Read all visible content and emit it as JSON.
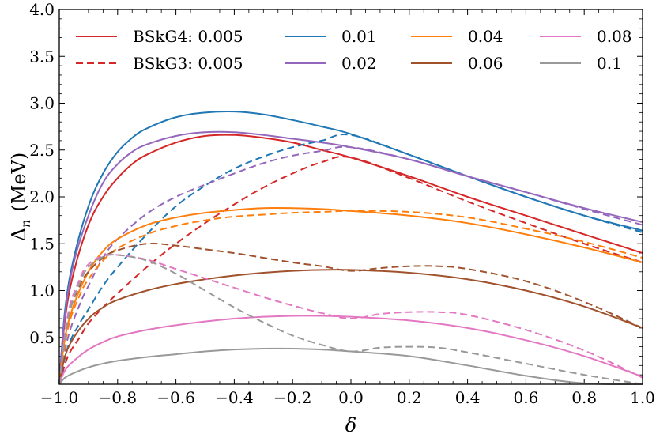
{
  "chart_data": {
    "type": "line",
    "title": "",
    "xlabel": "δ",
    "ylabel": "Δ",
    "ylabel_sub": "n",
    "ylabel_unit": "(MeV)",
    "xlim": [
      -1.0,
      1.0
    ],
    "ylim": [
      0.0,
      4.0
    ],
    "x_ticks": [
      -1.0,
      -0.8,
      -0.6,
      -0.4,
      -0.2,
      0.0,
      0.2,
      0.4,
      0.6,
      0.8,
      1.0
    ],
    "x_tick_labels": [
      "−1.0",
      "−0.8",
      "−0.6",
      "−0.4",
      "−0.2",
      "0.0",
      "0.2",
      "0.4",
      "0.6",
      "0.8",
      "1.0"
    ],
    "y_ticks": [
      0.5,
      1.0,
      1.5,
      2.0,
      2.5,
      3.0,
      3.5,
      4.0
    ],
    "y_tick_labels": [
      "0.5",
      "1.0",
      "1.5",
      "2.0",
      "2.5",
      "3.0",
      "3.5",
      "4.0"
    ],
    "legend": {
      "placement": "top",
      "entries": [
        {
          "label": "BSkG4: 0.005",
          "color": "#d62728",
          "dash": "solid"
        },
        {
          "label": "BSkG3: 0.005",
          "color": "#d62728",
          "dash": "dashed"
        },
        {
          "label": "0.01",
          "color": "#1f77b4",
          "dash": "solid"
        },
        {
          "label": "0.02",
          "color": "#9467bd",
          "dash": "solid"
        },
        {
          "label": "0.04",
          "color": "#ff7f0e",
          "dash": "solid"
        },
        {
          "label": "0.06",
          "color": "#a0522d",
          "dash": "solid"
        },
        {
          "label": "0.08",
          "color": "#e377c2",
          "dash": "solid"
        },
        {
          "label": "0.1",
          "color": "#999999",
          "dash": "solid"
        }
      ]
    },
    "series": [
      {
        "name": "BSkG4 0.005",
        "color": "#d62728",
        "dash": "solid",
        "x": [
          -1.0,
          -0.98,
          -0.95,
          -0.9,
          -0.85,
          -0.8,
          -0.75,
          -0.7,
          -0.6,
          -0.5,
          -0.4,
          -0.3,
          -0.2,
          -0.1,
          0.0,
          0.2,
          0.4,
          0.6,
          0.8,
          1.0
        ],
        "y": [
          0.0,
          0.7,
          1.2,
          1.7,
          2.0,
          2.2,
          2.35,
          2.45,
          2.58,
          2.65,
          2.66,
          2.63,
          2.58,
          2.5,
          2.42,
          2.22,
          2.0,
          1.8,
          1.6,
          1.4
        ]
      },
      {
        "name": "BSkG3 0.005",
        "color": "#d62728",
        "dash": "dashed",
        "x": [
          -1.0,
          -0.97,
          -0.93,
          -0.9,
          -0.85,
          -0.8,
          -0.7,
          -0.6,
          -0.5,
          -0.4,
          -0.3,
          -0.2,
          -0.1,
          0.0,
          0.2,
          0.4,
          0.6,
          0.8,
          1.0
        ],
        "y": [
          0.0,
          0.3,
          0.5,
          0.65,
          0.82,
          0.97,
          1.25,
          1.5,
          1.72,
          1.92,
          2.1,
          2.25,
          2.37,
          2.42,
          2.2,
          1.95,
          1.72,
          1.5,
          1.3
        ]
      },
      {
        "name": "0.01",
        "color": "#1f77b4",
        "dash": "solid",
        "x": [
          -1.0,
          -0.98,
          -0.95,
          -0.9,
          -0.85,
          -0.8,
          -0.75,
          -0.7,
          -0.6,
          -0.5,
          -0.4,
          -0.3,
          -0.2,
          -0.1,
          0.0,
          0.2,
          0.4,
          0.6,
          0.8,
          1.0
        ],
        "y": [
          0.0,
          0.8,
          1.35,
          1.9,
          2.25,
          2.48,
          2.63,
          2.73,
          2.85,
          2.9,
          2.91,
          2.88,
          2.82,
          2.75,
          2.67,
          2.45,
          2.22,
          2.0,
          1.8,
          1.64
        ]
      },
      {
        "name": "0.01 BSkG3",
        "color": "#1f77b4",
        "dash": "dashed",
        "x": [
          -1.0,
          -0.97,
          -0.93,
          -0.9,
          -0.85,
          -0.8,
          -0.7,
          -0.6,
          -0.5,
          -0.4,
          -0.3,
          -0.2,
          -0.1,
          0.0,
          0.2,
          0.4,
          0.6,
          0.8,
          1.0
        ],
        "y": [
          0.0,
          0.4,
          0.65,
          0.8,
          1.05,
          1.25,
          1.6,
          1.9,
          2.12,
          2.3,
          2.43,
          2.53,
          2.6,
          2.66,
          2.45,
          2.22,
          2.0,
          1.8,
          1.62
        ]
      },
      {
        "name": "0.02",
        "color": "#9467bd",
        "dash": "solid",
        "x": [
          -1.0,
          -0.98,
          -0.95,
          -0.9,
          -0.85,
          -0.8,
          -0.75,
          -0.7,
          -0.6,
          -0.5,
          -0.4,
          -0.3,
          -0.2,
          -0.1,
          0.0,
          0.2,
          0.4,
          0.6,
          0.8,
          1.0
        ],
        "y": [
          0.0,
          0.75,
          1.3,
          1.8,
          2.15,
          2.35,
          2.48,
          2.56,
          2.65,
          2.69,
          2.69,
          2.66,
          2.62,
          2.58,
          2.53,
          2.4,
          2.22,
          2.05,
          1.88,
          1.73
        ]
      },
      {
        "name": "0.02 BSkG3",
        "color": "#9467bd",
        "dash": "dashed",
        "x": [
          -1.0,
          -0.97,
          -0.93,
          -0.9,
          -0.85,
          -0.8,
          -0.7,
          -0.6,
          -0.5,
          -0.4,
          -0.3,
          -0.2,
          -0.1,
          0.0,
          0.2,
          0.4,
          0.6,
          0.8,
          1.0
        ],
        "y": [
          0.0,
          0.5,
          0.85,
          1.05,
          1.35,
          1.55,
          1.82,
          2.0,
          2.13,
          2.25,
          2.36,
          2.44,
          2.49,
          2.53,
          2.4,
          2.22,
          2.05,
          1.87,
          1.7
        ]
      },
      {
        "name": "0.04",
        "color": "#ff7f0e",
        "dash": "solid",
        "x": [
          -1.0,
          -0.98,
          -0.95,
          -0.9,
          -0.85,
          -0.8,
          -0.7,
          -0.6,
          -0.5,
          -0.4,
          -0.3,
          -0.2,
          -0.1,
          0.0,
          0.2,
          0.4,
          0.6,
          0.8,
          1.0
        ],
        "y": [
          0.0,
          0.5,
          0.85,
          1.2,
          1.42,
          1.55,
          1.7,
          1.78,
          1.83,
          1.86,
          1.88,
          1.88,
          1.87,
          1.85,
          1.8,
          1.72,
          1.6,
          1.46,
          1.3
        ]
      },
      {
        "name": "0.04 BSkG3",
        "color": "#ff7f0e",
        "dash": "dashed",
        "x": [
          -1.0,
          -0.97,
          -0.93,
          -0.9,
          -0.85,
          -0.8,
          -0.7,
          -0.6,
          -0.5,
          -0.4,
          -0.3,
          -0.2,
          -0.1,
          0.0,
          0.2,
          0.4,
          0.6,
          0.8,
          1.0
        ],
        "y": [
          0.0,
          0.6,
          0.95,
          1.12,
          1.32,
          1.45,
          1.6,
          1.69,
          1.75,
          1.79,
          1.81,
          1.83,
          1.84,
          1.85,
          1.84,
          1.78,
          1.66,
          1.52,
          1.35
        ]
      },
      {
        "name": "0.06",
        "color": "#a0522d",
        "dash": "solid",
        "x": [
          -1.0,
          -0.98,
          -0.95,
          -0.9,
          -0.85,
          -0.8,
          -0.7,
          -0.6,
          -0.5,
          -0.4,
          -0.3,
          -0.2,
          -0.1,
          0.0,
          0.2,
          0.4,
          0.6,
          0.8,
          1.0
        ],
        "y": [
          0.0,
          0.3,
          0.5,
          0.7,
          0.82,
          0.9,
          1.0,
          1.07,
          1.12,
          1.16,
          1.19,
          1.21,
          1.22,
          1.22,
          1.19,
          1.12,
          1.0,
          0.83,
          0.6
        ]
      },
      {
        "name": "0.06 BSkG3",
        "color": "#a0522d",
        "dash": "dashed",
        "x": [
          -1.0,
          -0.97,
          -0.93,
          -0.9,
          -0.85,
          -0.8,
          -0.7,
          -0.6,
          -0.5,
          -0.4,
          -0.3,
          -0.2,
          -0.1,
          0.0,
          0.1,
          0.2,
          0.3,
          0.4,
          0.6,
          0.8,
          1.0
        ],
        "y": [
          0.0,
          0.7,
          1.05,
          1.2,
          1.35,
          1.43,
          1.5,
          1.48,
          1.44,
          1.4,
          1.35,
          1.3,
          1.26,
          1.21,
          1.24,
          1.26,
          1.26,
          1.23,
          1.1,
          0.88,
          0.6
        ]
      },
      {
        "name": "0.08",
        "color": "#e377c2",
        "dash": "solid",
        "x": [
          -1.0,
          -0.98,
          -0.95,
          -0.9,
          -0.85,
          -0.8,
          -0.7,
          -0.6,
          -0.5,
          -0.4,
          -0.3,
          -0.2,
          -0.1,
          0.0,
          0.2,
          0.4,
          0.6,
          0.8,
          1.0
        ],
        "y": [
          0.0,
          0.15,
          0.25,
          0.37,
          0.45,
          0.51,
          0.58,
          0.63,
          0.67,
          0.7,
          0.72,
          0.73,
          0.73,
          0.72,
          0.68,
          0.6,
          0.47,
          0.3,
          0.08
        ]
      },
      {
        "name": "0.08 BSkG3",
        "color": "#e377c2",
        "dash": "dashed",
        "x": [
          -1.0,
          -0.97,
          -0.93,
          -0.9,
          -0.85,
          -0.8,
          -0.7,
          -0.6,
          -0.5,
          -0.4,
          -0.3,
          -0.2,
          -0.1,
          0.0,
          0.1,
          0.2,
          0.3,
          0.4,
          0.6,
          0.8,
          1.0
        ],
        "y": [
          0.0,
          0.75,
          1.12,
          1.28,
          1.37,
          1.38,
          1.33,
          1.23,
          1.13,
          1.03,
          0.93,
          0.84,
          0.76,
          0.7,
          0.75,
          0.77,
          0.77,
          0.74,
          0.58,
          0.36,
          0.07
        ]
      },
      {
        "name": "0.1",
        "color": "#999999",
        "dash": "solid",
        "x": [
          -1.0,
          -0.98,
          -0.95,
          -0.9,
          -0.85,
          -0.8,
          -0.7,
          -0.6,
          -0.5,
          -0.4,
          -0.3,
          -0.2,
          -0.1,
          0.0,
          0.2,
          0.4,
          0.6,
          0.8,
          1.0
        ],
        "y": [
          0.0,
          0.07,
          0.12,
          0.18,
          0.22,
          0.25,
          0.29,
          0.32,
          0.35,
          0.37,
          0.38,
          0.38,
          0.37,
          0.35,
          0.3,
          0.2,
          0.09,
          0.01,
          0.0
        ]
      },
      {
        "name": "0.1 BSkG3",
        "color": "#999999",
        "dash": "dashed",
        "x": [
          -1.0,
          -0.97,
          -0.93,
          -0.9,
          -0.85,
          -0.8,
          -0.7,
          -0.6,
          -0.5,
          -0.4,
          -0.3,
          -0.2,
          -0.1,
          0.0,
          0.1,
          0.2,
          0.3,
          0.4,
          0.6,
          0.8,
          1.0
        ],
        "y": [
          0.0,
          0.7,
          1.08,
          1.25,
          1.36,
          1.38,
          1.32,
          1.18,
          1.0,
          0.82,
          0.66,
          0.52,
          0.42,
          0.35,
          0.39,
          0.4,
          0.39,
          0.34,
          0.22,
          0.1,
          0.0
        ]
      }
    ]
  }
}
